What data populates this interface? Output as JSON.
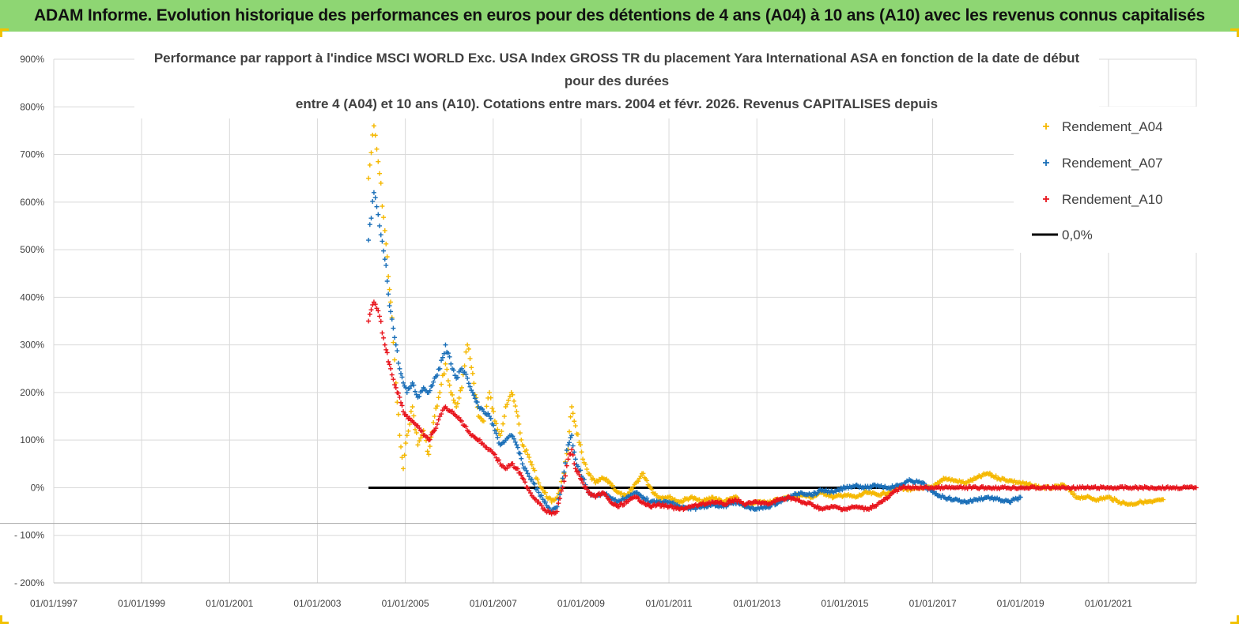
{
  "banner": {
    "title": "ADAM Informe. Evolution historique des performances en euros pour des détentions de 4 ans (A04) à 10 ans (A10) avec les revenus connus capitalisés"
  },
  "chart_data": {
    "type": "scatter",
    "title_lines": [
      "Performance par rapport à l'indice MSCI WORLD Exc. USA Index GROSS TR  du placement Yara International ASA en fonction de la date de début",
      "pour des durées",
      "entre 4 (A04) et 10 ans (A10). Cotations entre mars. 2004 et févr. 2026. Revenus CAPITALISES depuis"
    ],
    "xlabel": "",
    "ylabel": "",
    "x_tick_labels": [
      "01/01/1997",
      "01/01/1999",
      "01/01/2001",
      "01/01/2003",
      "01/01/2005",
      "01/01/2007",
      "01/01/2009",
      "01/01/2011",
      "01/01/2013",
      "01/01/2015",
      "01/01/2017",
      "01/01/2019",
      "01/01/2021"
    ],
    "x_range": [
      "1997-01-01",
      "2023-01-01"
    ],
    "y_tick_labels": [
      "900%",
      "800%",
      "700%",
      "600%",
      "500%",
      "400%",
      "300%",
      "200%",
      "100%",
      "0%",
      "- 100%",
      "- 200%"
    ],
    "ylim": [
      -200,
      900
    ],
    "grid": true,
    "legend_position": "top-right",
    "series": [
      {
        "name": "Rendement_A04",
        "color": "#f5b800",
        "marker": "+",
        "points": [
          [
            "2004-03-01",
            650
          ],
          [
            "2004-04-15",
            760
          ],
          [
            "2004-06-01",
            660
          ],
          [
            "2004-07-15",
            540
          ],
          [
            "2004-09-01",
            390
          ],
          [
            "2004-10-15",
            220
          ],
          [
            "2004-11-15",
            110
          ],
          [
            "2004-12-15",
            40
          ],
          [
            "2005-01-15",
            110
          ],
          [
            "2005-03-01",
            170
          ],
          [
            "2005-04-15",
            90
          ],
          [
            "2005-06-01",
            120
          ],
          [
            "2005-07-15",
            70
          ],
          [
            "2005-09-01",
            150
          ],
          [
            "2005-10-15",
            200
          ],
          [
            "2005-12-01",
            260
          ],
          [
            "2006-01-15",
            200
          ],
          [
            "2006-03-01",
            170
          ],
          [
            "2006-04-15",
            210
          ],
          [
            "2006-06-01",
            300
          ],
          [
            "2006-07-15",
            240
          ],
          [
            "2006-09-01",
            150
          ],
          [
            "2006-10-15",
            140
          ],
          [
            "2006-12-01",
            200
          ],
          [
            "2007-01-15",
            140
          ],
          [
            "2007-03-01",
            110
          ],
          [
            "2007-04-15",
            170
          ],
          [
            "2007-06-01",
            200
          ],
          [
            "2007-07-15",
            160
          ],
          [
            "2007-09-01",
            90
          ],
          [
            "2007-10-15",
            70
          ],
          [
            "2007-12-01",
            40
          ],
          [
            "2008-01-15",
            10
          ],
          [
            "2008-03-01",
            -10
          ],
          [
            "2008-05-01",
            -30
          ],
          [
            "2008-06-15",
            -20
          ],
          [
            "2008-08-01",
            20
          ],
          [
            "2008-09-15",
            80
          ],
          [
            "2008-10-15",
            170
          ],
          [
            "2008-11-15",
            130
          ],
          [
            "2009-01-15",
            60
          ],
          [
            "2009-03-01",
            30
          ],
          [
            "2009-05-01",
            10
          ],
          [
            "2009-07-01",
            20
          ],
          [
            "2009-09-01",
            10
          ],
          [
            "2009-11-01",
            -10
          ],
          [
            "2010-01-15",
            -20
          ],
          [
            "2010-04-01",
            10
          ],
          [
            "2010-06-01",
            30
          ],
          [
            "2010-08-01",
            0
          ],
          [
            "2010-10-01",
            -20
          ],
          [
            "2011-01-01",
            -20
          ],
          [
            "2011-04-01",
            -30
          ],
          [
            "2011-07-01",
            -20
          ],
          [
            "2011-10-01",
            -30
          ],
          [
            "2012-01-01",
            -20
          ],
          [
            "2012-04-01",
            -30
          ],
          [
            "2012-07-01",
            -20
          ],
          [
            "2012-10-01",
            -40
          ],
          [
            "2013-01-01",
            -30
          ],
          [
            "2013-04-01",
            -30
          ],
          [
            "2013-07-01",
            -25
          ],
          [
            "2013-10-01",
            -20
          ],
          [
            "2014-01-01",
            -15
          ],
          [
            "2014-04-01",
            -20
          ],
          [
            "2014-07-01",
            -10
          ],
          [
            "2014-10-01",
            -20
          ],
          [
            "2015-01-01",
            -15
          ],
          [
            "2015-04-01",
            -20
          ],
          [
            "2015-07-01",
            -10
          ],
          [
            "2015-10-01",
            -15
          ],
          [
            "2016-01-01",
            -10
          ],
          [
            "2016-04-01",
            0
          ],
          [
            "2016-07-01",
            -5
          ],
          [
            "2016-10-01",
            0
          ],
          [
            "2017-01-01",
            0
          ],
          [
            "2017-04-01",
            20
          ],
          [
            "2017-07-01",
            15
          ],
          [
            "2017-10-01",
            10
          ],
          [
            "2018-01-01",
            20
          ],
          [
            "2018-04-01",
            30
          ],
          [
            "2018-07-01",
            20
          ],
          [
            "2018-10-01",
            15
          ],
          [
            "2019-01-01",
            10
          ],
          [
            "2019-04-01",
            5
          ],
          [
            "2019-07-01",
            0
          ],
          [
            "2019-10-01",
            0
          ],
          [
            "2020-01-01",
            5
          ],
          [
            "2020-04-01",
            -20
          ],
          [
            "2020-07-01",
            -20
          ],
          [
            "2020-10-01",
            -25
          ],
          [
            "2021-01-01",
            -20
          ],
          [
            "2021-04-01",
            -30
          ],
          [
            "2021-07-01",
            -35
          ],
          [
            "2021-10-01",
            -30
          ],
          [
            "2022-01-01",
            -30
          ],
          [
            "2022-04-01",
            -25
          ]
        ]
      },
      {
        "name": "Rendement_A07",
        "color": "#1a6fb8",
        "marker": "+",
        "points": [
          [
            "2004-03-01",
            520
          ],
          [
            "2004-04-15",
            620
          ],
          [
            "2004-06-01",
            550
          ],
          [
            "2004-07-15",
            480
          ],
          [
            "2004-09-01",
            370
          ],
          [
            "2004-10-15",
            300
          ],
          [
            "2004-11-15",
            250
          ],
          [
            "2004-12-15",
            220
          ],
          [
            "2005-01-15",
            200
          ],
          [
            "2005-03-01",
            220
          ],
          [
            "2005-04-15",
            190
          ],
          [
            "2005-06-01",
            210
          ],
          [
            "2005-07-15",
            200
          ],
          [
            "2005-09-01",
            230
          ],
          [
            "2005-10-15",
            250
          ],
          [
            "2005-12-01",
            300
          ],
          [
            "2006-01-15",
            260
          ],
          [
            "2006-03-01",
            230
          ],
          [
            "2006-04-15",
            250
          ],
          [
            "2006-06-01",
            230
          ],
          [
            "2006-07-15",
            200
          ],
          [
            "2006-09-01",
            170
          ],
          [
            "2006-10-15",
            160
          ],
          [
            "2006-12-01",
            150
          ],
          [
            "2007-01-15",
            120
          ],
          [
            "2007-03-01",
            90
          ],
          [
            "2007-04-15",
            100
          ],
          [
            "2007-06-01",
            110
          ],
          [
            "2007-07-15",
            90
          ],
          [
            "2007-09-01",
            50
          ],
          [
            "2007-10-15",
            30
          ],
          [
            "2007-12-01",
            10
          ],
          [
            "2008-01-15",
            -10
          ],
          [
            "2008-03-01",
            -30
          ],
          [
            "2008-05-01",
            -50
          ],
          [
            "2008-06-15",
            -40
          ],
          [
            "2008-08-01",
            20
          ],
          [
            "2008-09-15",
            90
          ],
          [
            "2008-10-15",
            110
          ],
          [
            "2008-11-15",
            60
          ],
          [
            "2009-01-15",
            20
          ],
          [
            "2009-03-01",
            -10
          ],
          [
            "2009-05-01",
            -20
          ],
          [
            "2009-07-01",
            -10
          ],
          [
            "2009-09-01",
            -20
          ],
          [
            "2009-11-01",
            -30
          ],
          [
            "2010-01-15",
            -20
          ],
          [
            "2010-04-01",
            -10
          ],
          [
            "2010-06-01",
            -20
          ],
          [
            "2010-08-01",
            -30
          ],
          [
            "2010-10-01",
            -30
          ],
          [
            "2011-01-01",
            -30
          ],
          [
            "2011-04-01",
            -40
          ],
          [
            "2011-07-01",
            -45
          ],
          [
            "2011-10-01",
            -40
          ],
          [
            "2012-01-01",
            -35
          ],
          [
            "2012-04-01",
            -40
          ],
          [
            "2012-07-01",
            -30
          ],
          [
            "2012-10-01",
            -40
          ],
          [
            "2013-01-01",
            -45
          ],
          [
            "2013-04-01",
            -40
          ],
          [
            "2013-07-01",
            -30
          ],
          [
            "2013-10-01",
            -20
          ],
          [
            "2014-01-01",
            -10
          ],
          [
            "2014-04-01",
            -15
          ],
          [
            "2014-07-01",
            -5
          ],
          [
            "2014-10-01",
            -10
          ],
          [
            "2015-01-01",
            0
          ],
          [
            "2015-04-01",
            5
          ],
          [
            "2015-07-01",
            0
          ],
          [
            "2015-10-01",
            5
          ],
          [
            "2016-01-01",
            0
          ],
          [
            "2016-04-01",
            5
          ],
          [
            "2016-07-01",
            15
          ],
          [
            "2016-10-01",
            10
          ],
          [
            "2017-01-01",
            -10
          ],
          [
            "2017-04-01",
            -20
          ],
          [
            "2017-07-01",
            -25
          ],
          [
            "2017-10-01",
            -30
          ],
          [
            "2018-01-01",
            -25
          ],
          [
            "2018-04-01",
            -20
          ],
          [
            "2018-07-01",
            -25
          ],
          [
            "2018-10-01",
            -30
          ],
          [
            "2019-01-01",
            -20
          ]
        ]
      },
      {
        "name": "Rendement_A10",
        "color": "#e8141c",
        "marker": "+",
        "points": [
          [
            "2004-03-01",
            350
          ],
          [
            "2004-04-15",
            390
          ],
          [
            "2004-06-01",
            360
          ],
          [
            "2004-07-15",
            300
          ],
          [
            "2004-09-01",
            250
          ],
          [
            "2004-10-15",
            210
          ],
          [
            "2004-11-15",
            190
          ],
          [
            "2004-12-15",
            160
          ],
          [
            "2005-01-15",
            150
          ],
          [
            "2005-03-01",
            140
          ],
          [
            "2005-04-15",
            130
          ],
          [
            "2005-06-01",
            110
          ],
          [
            "2005-07-15",
            100
          ],
          [
            "2005-09-01",
            120
          ],
          [
            "2005-10-15",
            150
          ],
          [
            "2005-12-01",
            170
          ],
          [
            "2006-01-15",
            160
          ],
          [
            "2006-03-01",
            150
          ],
          [
            "2006-04-15",
            140
          ],
          [
            "2006-06-01",
            120
          ],
          [
            "2006-07-15",
            110
          ],
          [
            "2006-09-01",
            100
          ],
          [
            "2006-10-15",
            90
          ],
          [
            "2006-12-01",
            80
          ],
          [
            "2007-01-15",
            70
          ],
          [
            "2007-03-01",
            50
          ],
          [
            "2007-04-15",
            40
          ],
          [
            "2007-06-01",
            50
          ],
          [
            "2007-07-15",
            40
          ],
          [
            "2007-09-01",
            20
          ],
          [
            "2007-10-15",
            0
          ],
          [
            "2007-12-01",
            -20
          ],
          [
            "2008-01-15",
            -30
          ],
          [
            "2008-03-01",
            -45
          ],
          [
            "2008-05-01",
            -55
          ],
          [
            "2008-06-15",
            -50
          ],
          [
            "2008-08-01",
            0
          ],
          [
            "2008-09-15",
            60
          ],
          [
            "2008-10-15",
            80
          ],
          [
            "2008-11-15",
            40
          ],
          [
            "2009-01-15",
            10
          ],
          [
            "2009-03-01",
            -10
          ],
          [
            "2009-05-01",
            -20
          ],
          [
            "2009-07-01",
            -10
          ],
          [
            "2009-09-01",
            -30
          ],
          [
            "2009-11-01",
            -40
          ],
          [
            "2010-01-15",
            -30
          ],
          [
            "2010-04-01",
            -20
          ],
          [
            "2010-06-01",
            -30
          ],
          [
            "2010-08-01",
            -40
          ],
          [
            "2010-10-01",
            -35
          ],
          [
            "2011-01-01",
            -40
          ],
          [
            "2011-04-01",
            -45
          ],
          [
            "2011-07-01",
            -40
          ],
          [
            "2011-10-01",
            -35
          ],
          [
            "2012-01-01",
            -30
          ],
          [
            "2012-04-01",
            -35
          ],
          [
            "2012-07-01",
            -25
          ],
          [
            "2012-10-01",
            -35
          ],
          [
            "2013-01-01",
            -30
          ],
          [
            "2013-04-01",
            -35
          ],
          [
            "2013-07-01",
            -25
          ],
          [
            "2013-10-01",
            -20
          ],
          [
            "2014-01-01",
            -30
          ],
          [
            "2014-04-01",
            -35
          ],
          [
            "2014-07-01",
            -45
          ],
          [
            "2014-10-01",
            -40
          ],
          [
            "2015-01-01",
            -45
          ],
          [
            "2015-04-01",
            -40
          ],
          [
            "2015-07-01",
            -45
          ],
          [
            "2015-10-01",
            -35
          ],
          [
            "2016-01-01",
            -20
          ],
          [
            "2016-04-01",
            0
          ],
          [
            "2016-07-01",
            0
          ],
          [
            "2016-10-01",
            0
          ],
          [
            "2017-01-01",
            0
          ],
          [
            "2017-07-01",
            0
          ],
          [
            "2018-01-01",
            0
          ],
          [
            "2018-07-01",
            0
          ],
          [
            "2019-01-01",
            0
          ],
          [
            "2019-07-01",
            0
          ],
          [
            "2020-01-01",
            0
          ],
          [
            "2020-07-01",
            0
          ],
          [
            "2021-01-01",
            0
          ],
          [
            "2021-07-01",
            0
          ],
          [
            "2022-01-01",
            0
          ],
          [
            "2022-07-01",
            0
          ],
          [
            "2022-12-31",
            0
          ]
        ]
      }
    ],
    "reference_line": {
      "name": "0,0%",
      "color": "#000000",
      "value": 0,
      "from": "2004-03-01",
      "to": "2022-12-31"
    }
  }
}
